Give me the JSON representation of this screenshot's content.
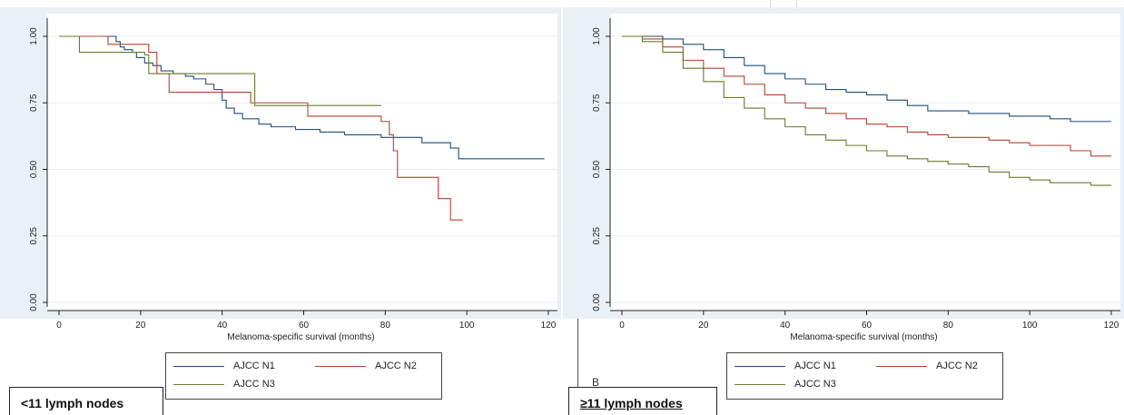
{
  "colors": {
    "n1": "#1f4e79",
    "n2": "#b1432e",
    "n3": "#6b7a2e",
    "grid": "#e8eef3",
    "plot_bg": "#ffffff",
    "frame_bg": "#eaf1f6"
  },
  "stray_letter": "B",
  "chart_data": [
    {
      "type": "line",
      "subtitle": "<11 lymph nodes",
      "xlabel": "Melanoma-specific survival (months)",
      "ylabel": "",
      "xlim": [
        0,
        120
      ],
      "ylim": [
        0,
        1
      ],
      "xticks": [
        0,
        20,
        40,
        60,
        80,
        100,
        120
      ],
      "yticks": [
        "0.00",
        "0.25",
        "0.50",
        "0.75",
        "1.00"
      ],
      "ytick_values": [
        0,
        0.25,
        0.5,
        0.75,
        1.0
      ],
      "legend": [
        "AJCC N1",
        "AJCC N2",
        "AJCC N3"
      ],
      "grid": true,
      "series": [
        {
          "name": "AJCC N1",
          "color": "#1f4e79",
          "step": true,
          "x": [
            0,
            10,
            14,
            15,
            16,
            18,
            19,
            21,
            23,
            25,
            28,
            31,
            33,
            36,
            38,
            40,
            41,
            43,
            45,
            49,
            52,
            58,
            64,
            70,
            79,
            89,
            96,
            98,
            119
          ],
          "y": [
            1.0,
            1.0,
            0.98,
            0.96,
            0.95,
            0.94,
            0.92,
            0.9,
            0.89,
            0.87,
            0.86,
            0.85,
            0.84,
            0.82,
            0.8,
            0.76,
            0.73,
            0.71,
            0.69,
            0.67,
            0.66,
            0.65,
            0.64,
            0.63,
            0.62,
            0.6,
            0.58,
            0.54,
            0.54
          ]
        },
        {
          "name": "AJCC N2",
          "color": "#b1432e",
          "step": true,
          "x": [
            0,
            10,
            12,
            22,
            24,
            27,
            47,
            61,
            79,
            81,
            82,
            83,
            87,
            93,
            96,
            99
          ],
          "y": [
            1.0,
            1.0,
            0.97,
            0.94,
            0.86,
            0.79,
            0.75,
            0.7,
            0.68,
            0.63,
            0.57,
            0.47,
            0.47,
            0.39,
            0.31,
            0.31
          ]
        },
        {
          "name": "AJCC N3",
          "color": "#6b7a2e",
          "step": true,
          "x": [
            0,
            5,
            21,
            22,
            23,
            25,
            48,
            79
          ],
          "y": [
            1.0,
            0.94,
            0.93,
            0.86,
            0.86,
            0.86,
            0.74,
            0.74
          ]
        }
      ]
    },
    {
      "type": "line",
      "subtitle": "≥11 lymph nodes",
      "xlabel": "Melanoma-specific survival (months)",
      "ylabel": "",
      "xlim": [
        0,
        120
      ],
      "ylim": [
        0,
        1
      ],
      "xticks": [
        0,
        20,
        40,
        60,
        80,
        100,
        120
      ],
      "yticks": [
        "0.00",
        "0.25",
        "0.50",
        "0.75",
        "1.00"
      ],
      "ytick_values": [
        0,
        0.25,
        0.5,
        0.75,
        1.0
      ],
      "legend": [
        "AJCC N1",
        "AJCC N2",
        "AJCC N3"
      ],
      "grid": true,
      "series": [
        {
          "name": "AJCC N1",
          "color": "#1f4e79",
          "step": true,
          "x": [
            0,
            5,
            10,
            15,
            20,
            25,
            30,
            35,
            40,
            45,
            50,
            55,
            60,
            65,
            70,
            75,
            80,
            85,
            90,
            95,
            100,
            105,
            110,
            115,
            120
          ],
          "y": [
            1.0,
            1.0,
            0.99,
            0.97,
            0.95,
            0.92,
            0.89,
            0.86,
            0.84,
            0.82,
            0.8,
            0.79,
            0.78,
            0.76,
            0.74,
            0.72,
            0.72,
            0.71,
            0.71,
            0.7,
            0.7,
            0.69,
            0.68,
            0.68,
            0.68
          ]
        },
        {
          "name": "AJCC N2",
          "color": "#b1432e",
          "step": true,
          "x": [
            0,
            5,
            10,
            15,
            20,
            25,
            30,
            35,
            40,
            45,
            50,
            55,
            60,
            65,
            70,
            75,
            80,
            85,
            90,
            95,
            100,
            105,
            110,
            115,
            120
          ],
          "y": [
            1.0,
            0.99,
            0.96,
            0.91,
            0.88,
            0.85,
            0.82,
            0.78,
            0.75,
            0.73,
            0.71,
            0.69,
            0.67,
            0.66,
            0.64,
            0.63,
            0.62,
            0.62,
            0.61,
            0.6,
            0.59,
            0.59,
            0.57,
            0.55,
            0.55
          ]
        },
        {
          "name": "AJCC N3",
          "color": "#6b7a2e",
          "step": true,
          "x": [
            0,
            5,
            10,
            15,
            20,
            25,
            30,
            35,
            40,
            45,
            50,
            55,
            60,
            65,
            70,
            75,
            80,
            85,
            90,
            95,
            100,
            105,
            110,
            115,
            120
          ],
          "y": [
            1.0,
            0.98,
            0.94,
            0.88,
            0.83,
            0.77,
            0.73,
            0.69,
            0.66,
            0.63,
            0.61,
            0.59,
            0.57,
            0.55,
            0.54,
            0.53,
            0.52,
            0.51,
            0.49,
            0.47,
            0.46,
            0.45,
            0.45,
            0.44,
            0.44
          ]
        }
      ]
    }
  ]
}
